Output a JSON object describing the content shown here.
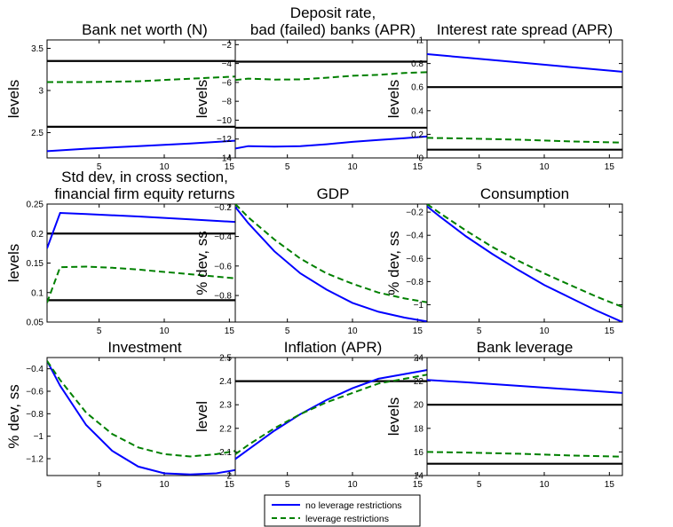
{
  "legend": {
    "entries": [
      {
        "label": "no leverage restrictions",
        "color": "#0000ff",
        "dash": "solid"
      },
      {
        "label": "leverage restrictions",
        "color": "#008000",
        "dash": "dashed"
      }
    ],
    "placement": "bottom-center"
  },
  "chart_data": [
    {
      "type": "line",
      "title": [
        "Bank net worth (N)"
      ],
      "ylabel": "levels",
      "xlim": [
        1,
        16
      ],
      "ylim": [
        2.2,
        3.6
      ],
      "xticks": [
        5,
        10,
        15
      ],
      "yticks": [
        2.5,
        3,
        3.5
      ],
      "ytick_labels": [
        "2.5",
        "3",
        "3.5"
      ],
      "hlines": [
        3.35,
        2.57
      ],
      "series": [
        {
          "name": "no leverage restrictions",
          "color": "#0000ff",
          "dash": "solid",
          "x": [
            1,
            4,
            8,
            12,
            16
          ],
          "y": [
            2.28,
            2.31,
            2.34,
            2.37,
            2.41
          ]
        },
        {
          "name": "leverage restrictions",
          "color": "#008000",
          "dash": "dashed",
          "x": [
            1,
            4,
            8,
            12,
            16
          ],
          "y": [
            3.1,
            3.1,
            3.11,
            3.14,
            3.17
          ]
        }
      ]
    },
    {
      "type": "line",
      "title": [
        "Deposit rate,",
        "bad (failed) banks (APR)"
      ],
      "ylabel": "levels",
      "xlim": [
        1,
        16
      ],
      "ylim": [
        -14,
        -1.5
      ],
      "xticks": [
        5,
        10,
        15
      ],
      "yticks": [
        -2,
        -4,
        -6,
        -8,
        -10,
        -12,
        -14
      ],
      "ytick_labels": [
        "−2",
        "−4",
        "−6",
        "−8",
        "−10",
        "−12",
        "−14"
      ],
      "hlines": [
        -3.8,
        -10.8
      ],
      "series": [
        {
          "name": "no leverage restrictions",
          "color": "#0000ff",
          "dash": "solid",
          "x": [
            1,
            2,
            4,
            6,
            8,
            10,
            12,
            14,
            16
          ],
          "y": [
            -13.0,
            -12.75,
            -12.8,
            -12.75,
            -12.55,
            -12.3,
            -12.1,
            -11.9,
            -11.7
          ]
        },
        {
          "name": "leverage restrictions",
          "color": "#008000",
          "dash": "dashed",
          "x": [
            1,
            2,
            4,
            6,
            8,
            10,
            12,
            14,
            16
          ],
          "y": [
            -5.75,
            -5.6,
            -5.7,
            -5.68,
            -5.5,
            -5.3,
            -5.2,
            -5.0,
            -4.9
          ]
        }
      ]
    },
    {
      "type": "line",
      "title": [
        "Interest rate spread (APR)"
      ],
      "ylabel": "levels",
      "xlim": [
        1,
        16
      ],
      "ylim": [
        0,
        1
      ],
      "xticks": [
        5,
        10,
        15
      ],
      "yticks": [
        0,
        0.2,
        0.4,
        0.6,
        0.8,
        1
      ],
      "ytick_labels": [
        "0",
        "0.2",
        "0.4",
        "0.6",
        "0.8",
        "1"
      ],
      "hlines": [
        0.6,
        0.07
      ],
      "series": [
        {
          "name": "no leverage restrictions",
          "color": "#0000ff",
          "dash": "solid",
          "x": [
            1,
            4,
            8,
            12,
            16
          ],
          "y": [
            0.88,
            0.85,
            0.81,
            0.77,
            0.73
          ]
        },
        {
          "name": "leverage restrictions",
          "color": "#008000",
          "dash": "dashed",
          "x": [
            1,
            4,
            8,
            12,
            16
          ],
          "y": [
            0.17,
            0.165,
            0.155,
            0.14,
            0.13
          ]
        }
      ]
    },
    {
      "type": "line",
      "title": [
        "Std dev, in cross section,",
        "financial firm equity returns"
      ],
      "ylabel": "levels",
      "xlim": [
        1,
        16
      ],
      "ylim": [
        0.05,
        0.25
      ],
      "xticks": [
        5,
        10,
        15
      ],
      "yticks": [
        0.05,
        0.1,
        0.15,
        0.2,
        0.25
      ],
      "ytick_labels": [
        "0.05",
        "0.1",
        "0.15",
        "0.2",
        "0.25"
      ],
      "hlines": [
        0.2,
        0.087
      ],
      "series": [
        {
          "name": "no leverage restrictions",
          "color": "#0000ff",
          "dash": "solid",
          "x": [
            1,
            2,
            4,
            8,
            12,
            16
          ],
          "y": [
            0.175,
            0.235,
            0.233,
            0.229,
            0.224,
            0.219
          ]
        },
        {
          "name": "leverage restrictions",
          "color": "#008000",
          "dash": "dashed",
          "x": [
            1,
            2,
            4,
            6,
            8,
            10,
            12,
            14,
            16
          ],
          "y": [
            0.083,
            0.143,
            0.144,
            0.142,
            0.139,
            0.135,
            0.131,
            0.127,
            0.123
          ]
        }
      ]
    },
    {
      "type": "line",
      "title": [
        "GDP"
      ],
      "ylabel": "% dev, ss",
      "xlim": [
        1,
        16
      ],
      "ylim": [
        -0.98,
        -0.18
      ],
      "xticks": [
        5,
        10,
        15
      ],
      "yticks": [
        -0.2,
        -0.4,
        -0.6,
        -0.8
      ],
      "ytick_labels": [
        "−0.2",
        "−0.4",
        "−0.6",
        "−0.8"
      ],
      "hlines": [],
      "series": [
        {
          "name": "no leverage restrictions",
          "color": "#0000ff",
          "dash": "solid",
          "x": [
            1,
            2,
            4,
            6,
            8,
            10,
            12,
            14,
            16
          ],
          "y": [
            -0.2,
            -0.31,
            -0.5,
            -0.65,
            -0.76,
            -0.85,
            -0.91,
            -0.95,
            -0.98
          ]
        },
        {
          "name": "leverage restrictions",
          "color": "#008000",
          "dash": "dashed",
          "x": [
            1,
            2,
            4,
            6,
            8,
            10,
            12,
            14,
            16
          ],
          "y": [
            -0.18,
            -0.27,
            -0.42,
            -0.55,
            -0.65,
            -0.72,
            -0.78,
            -0.82,
            -0.85
          ]
        }
      ]
    },
    {
      "type": "line",
      "title": [
        "Consumption"
      ],
      "ylabel": "% dev, ss",
      "xlim": [
        1,
        16
      ],
      "ylim": [
        -1.15,
        -0.13
      ],
      "xticks": [
        5,
        10,
        15
      ],
      "yticks": [
        -0.2,
        -0.4,
        -0.6,
        -0.8,
        -1
      ],
      "ytick_labels": [
        "−0.2",
        "−0.4",
        "−0.6",
        "−0.8",
        "−1"
      ],
      "hlines": [],
      "series": [
        {
          "name": "no leverage restrictions",
          "color": "#0000ff",
          "dash": "solid",
          "x": [
            1,
            2,
            4,
            6,
            8,
            10,
            12,
            14,
            16
          ],
          "y": [
            -0.15,
            -0.24,
            -0.41,
            -0.56,
            -0.7,
            -0.83,
            -0.94,
            -1.05,
            -1.15
          ]
        },
        {
          "name": "leverage restrictions",
          "color": "#008000",
          "dash": "dashed",
          "x": [
            1,
            2,
            4,
            6,
            8,
            10,
            12,
            14,
            16
          ],
          "y": [
            -0.13,
            -0.21,
            -0.36,
            -0.5,
            -0.62,
            -0.73,
            -0.83,
            -0.93,
            -1.02
          ]
        }
      ]
    },
    {
      "type": "line",
      "title": [
        "Investment"
      ],
      "ylabel": "% dev, ss",
      "xlim": [
        1,
        16
      ],
      "ylim": [
        -1.35,
        -0.3
      ],
      "xticks": [
        5,
        10,
        15
      ],
      "yticks": [
        -0.4,
        -0.6,
        -0.8,
        -1,
        -1.2
      ],
      "ytick_labels": [
        "−0.4",
        "−0.6",
        "−0.8",
        "−1",
        "−1.2"
      ],
      "hlines": [],
      "series": [
        {
          "name": "no leverage restrictions",
          "color": "#0000ff",
          "dash": "solid",
          "x": [
            1,
            2,
            4,
            6,
            8,
            10,
            12,
            14,
            16
          ],
          "y": [
            -0.33,
            -0.55,
            -0.9,
            -1.13,
            -1.27,
            -1.33,
            -1.34,
            -1.33,
            -1.29
          ]
        },
        {
          "name": "leverage restrictions",
          "color": "#008000",
          "dash": "dashed",
          "x": [
            1,
            2,
            4,
            6,
            8,
            10,
            12,
            14,
            16
          ],
          "y": [
            -0.33,
            -0.5,
            -0.79,
            -0.98,
            -1.1,
            -1.16,
            -1.18,
            -1.16,
            -1.12
          ]
        }
      ]
    },
    {
      "type": "line",
      "title": [
        "Inflation (APR)"
      ],
      "ylabel": "level",
      "xlim": [
        1,
        16
      ],
      "ylim": [
        2.0,
        2.5
      ],
      "xticks": [
        5,
        10,
        15
      ],
      "yticks": [
        2,
        2.1,
        2.2,
        2.3,
        2.4,
        2.5
      ],
      "ytick_labels": [
        "2",
        "2.1",
        "2.2",
        "2.3",
        "2.4",
        "2.5"
      ],
      "hlines": [
        2.4
      ],
      "series": [
        {
          "name": "no leverage restrictions",
          "color": "#0000ff",
          "dash": "solid",
          "x": [
            1,
            2,
            4,
            6,
            8,
            10,
            12,
            14,
            16
          ],
          "y": [
            2.07,
            2.11,
            2.19,
            2.26,
            2.32,
            2.37,
            2.41,
            2.43,
            2.45
          ]
        },
        {
          "name": "leverage restrictions",
          "color": "#008000",
          "dash": "dashed",
          "x": [
            1,
            2,
            4,
            6,
            8,
            10,
            12,
            14,
            16
          ],
          "y": [
            2.09,
            2.13,
            2.2,
            2.26,
            2.31,
            2.35,
            2.39,
            2.41,
            2.43
          ]
        }
      ]
    },
    {
      "type": "line",
      "title": [
        "Bank leverage"
      ],
      "ylabel": "levels",
      "xlim": [
        1,
        16
      ],
      "ylim": [
        14,
        24
      ],
      "xticks": [
        5,
        10,
        15
      ],
      "yticks": [
        14,
        16,
        18,
        20,
        22,
        24
      ],
      "ytick_labels": [
        "14",
        "16",
        "18",
        "20",
        "22",
        "24"
      ],
      "hlines": [
        20,
        15
      ],
      "series": [
        {
          "name": "no leverage restrictions",
          "color": "#0000ff",
          "dash": "solid",
          "x": [
            1,
            4,
            8,
            12,
            16
          ],
          "y": [
            22.1,
            21.9,
            21.6,
            21.3,
            21.0
          ]
        },
        {
          "name": "leverage restrictions",
          "color": "#008000",
          "dash": "dashed",
          "x": [
            1,
            4,
            8,
            12,
            16
          ],
          "y": [
            16.0,
            15.95,
            15.85,
            15.7,
            15.6
          ]
        }
      ]
    }
  ]
}
